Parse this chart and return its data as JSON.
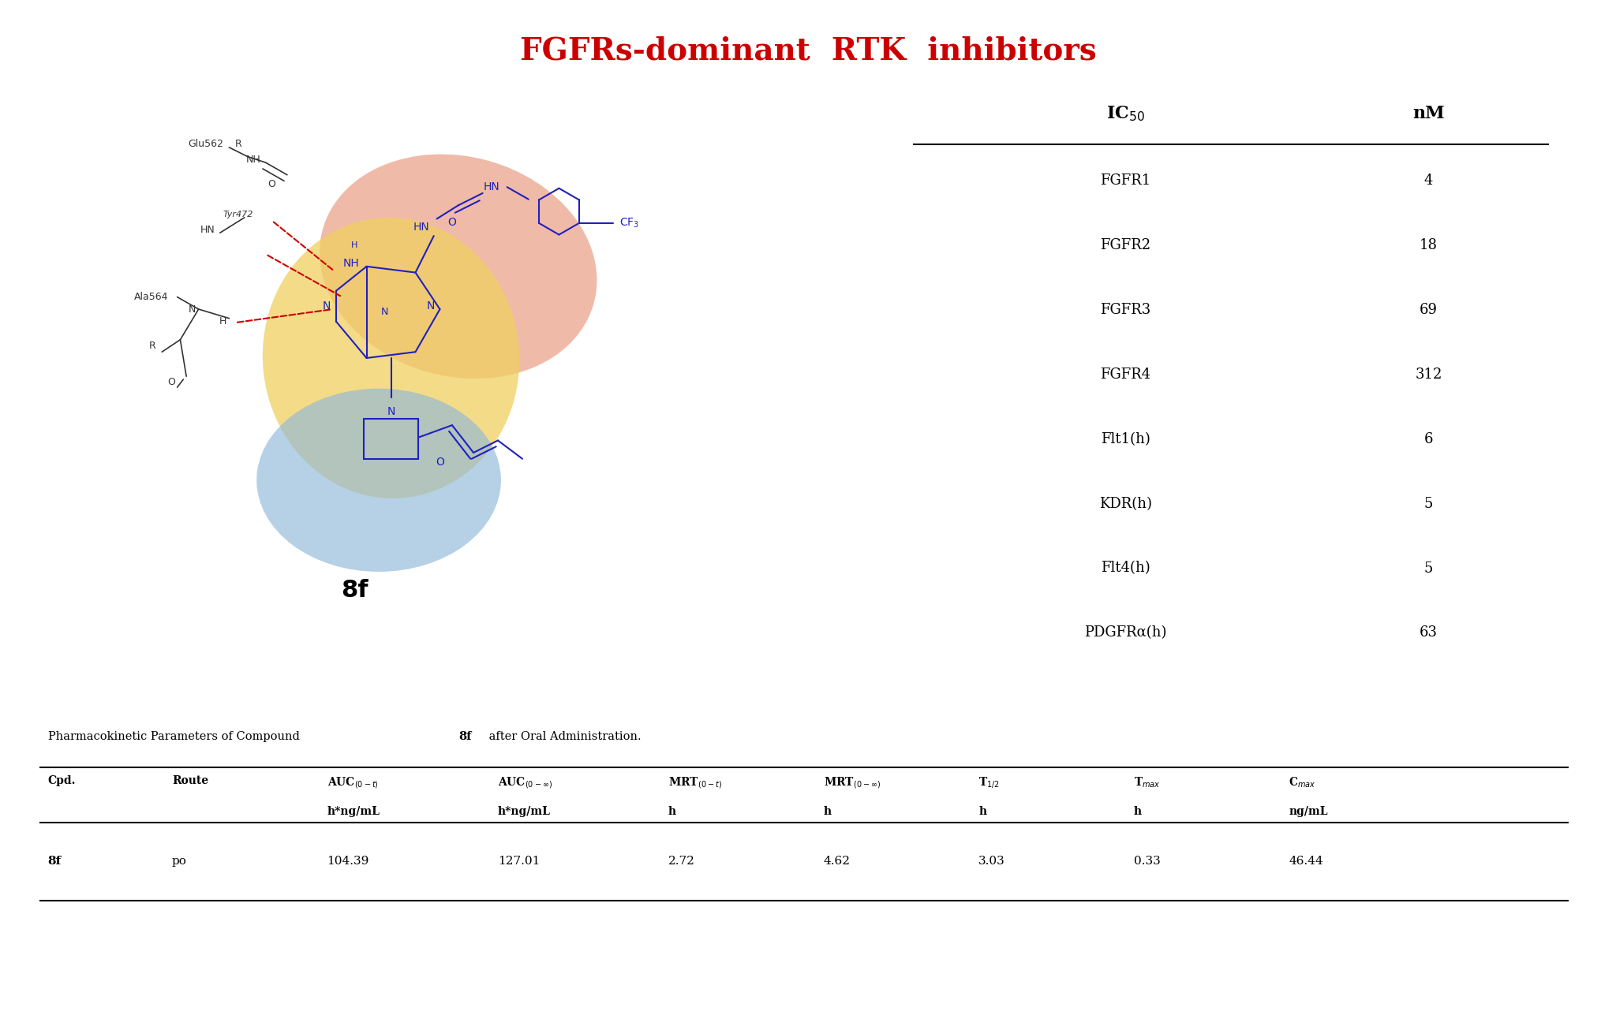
{
  "title": "FGFRs-dominant  RTK  inhibitors",
  "title_color": "#CC0000",
  "title_fontsize": 28,
  "compound_label": "8f",
  "ic50_rows": [
    [
      "FGFR1",
      "4"
    ],
    [
      "FGFR2",
      "18"
    ],
    [
      "FGFR3",
      "69"
    ],
    [
      "FGFR4",
      "312"
    ],
    [
      "Flt1(h)",
      "6"
    ],
    [
      "KDR(h)",
      "5"
    ],
    [
      "Flt4(h)",
      "5"
    ],
    [
      "PDGFRα(h)",
      "63"
    ]
  ],
  "pk_caption": "Pharmacokinetic Parameters of Compound ",
  "pk_caption_bold": "8f",
  "pk_caption_end": " after Oral Administration.",
  "pk_col_headers": [
    "Cpd.",
    "Route",
    "AUC(0-t)\nh*ng/mL",
    "AUC(0-inf)\nh*ng/mL",
    "MRT(0-t)\nh",
    "MRT(0-inf)\nh",
    "T1/2\nh",
    "Tmax\nh",
    "Cmax\nng/mL"
  ],
  "pk_col_headers_line1": [
    "Cpd.",
    "Route",
    "AUC(0-t)",
    "AUC(0-∞)",
    "MRT(0-t)",
    "MRT(0-∞)",
    "T1/2",
    "Tmax",
    "Cmax"
  ],
  "pk_col_headers_line2": [
    "",
    "",
    "h*ng/mL",
    "h*ng/mL",
    "h",
    "h",
    "h",
    "h",
    "ng/mL"
  ],
  "pk_data_rows": [
    [
      "8f",
      "po",
      "104.39",
      "127.01",
      "2.72",
      "4.62",
      "3.03",
      "0.33",
      "46.44"
    ]
  ],
  "orange_blob_color": "#E8957A",
  "yellow_blob_color": "#F0D060",
  "blue_blob_color": "#90B8D8",
  "molecule_color": "#2020C0",
  "annotation_color": "#1a1a1a",
  "dashed_color": "#CC0000",
  "background_color": "#FFFFFF"
}
